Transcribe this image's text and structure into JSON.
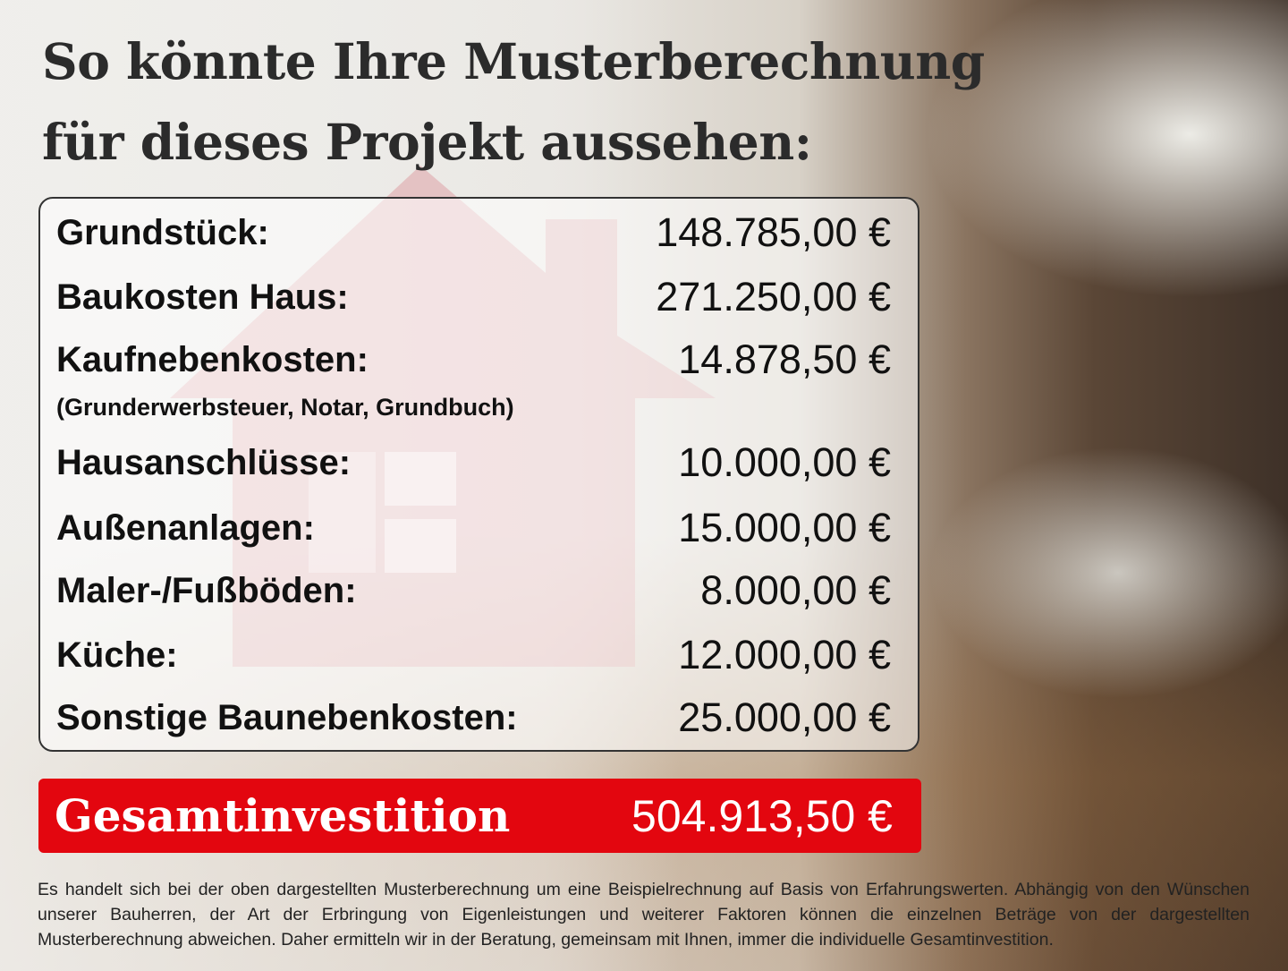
{
  "title": {
    "line1": "So könnte Ihre Musterberechnung",
    "line2": "für dieses Projekt aussehen:"
  },
  "items": [
    {
      "label": "Grundstück:",
      "value": "148.785,00 €"
    },
    {
      "label": "Baukosten Haus:",
      "value": "271.250,00 €"
    },
    {
      "label": "Kaufnebenkosten:",
      "value": "14.878,50 €",
      "note": "(Grunderwerbsteuer, Notar, Grundbuch)"
    },
    {
      "label": "Hausanschlüsse:",
      "value": "10.000,00 €"
    },
    {
      "label": "Außenanlagen:",
      "value": "15.000,00 €"
    },
    {
      "label": "Maler-/Fußböden:",
      "value": "8.000,00 €"
    },
    {
      "label": "Küche:",
      "value": "12.000,00 €"
    },
    {
      "label": "Sonstige Baunebenkosten:",
      "value": "25.000,00 €"
    }
  ],
  "total": {
    "label": "Gesamtinvestition",
    "value": "504.913,50 €"
  },
  "disclaimer": "Es handelt sich bei der oben dargestellten Musterberechnung um eine Beispielrechnung auf Basis von Erfahrungswerten. Abhängig von den Wünschen unserer Bauherren, der Art der Erbringung von Eigenleistungen und weiterer Faktoren können die einzelnen Beträge von der dargestellten Musterberechnung abweichen. Daher ermitteln wir in der Beratung, gemeinsam mit Ihnen, immer die individuelle Gesamtinvestition.",
  "colors": {
    "accent": "#e3060f",
    "text": "#111111"
  }
}
